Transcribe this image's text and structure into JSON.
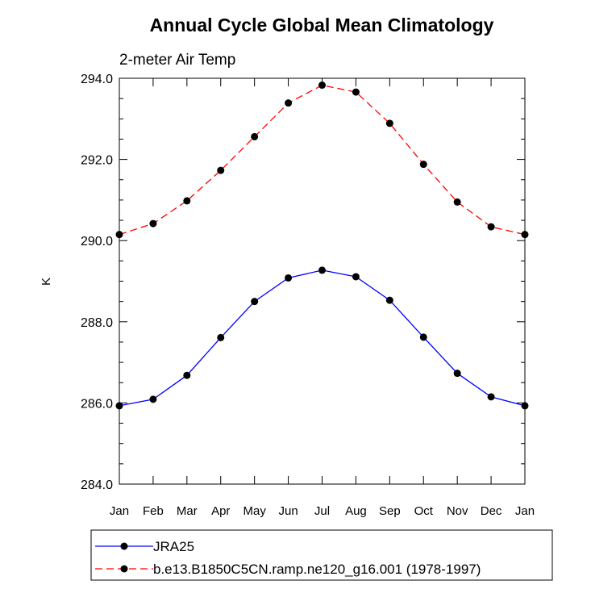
{
  "chart_data": {
    "type": "line",
    "title": "Annual Cycle Global Mean Climatology",
    "subtitle": "2-meter Air Temp",
    "xlabel": "",
    "ylabel": "K",
    "categories": [
      "Jan",
      "Feb",
      "Mar",
      "Apr",
      "May",
      "Jun",
      "Jul",
      "Aug",
      "Sep",
      "Oct",
      "Nov",
      "Dec",
      "Jan"
    ],
    "ylim": [
      284.0,
      294.0
    ],
    "yticks": [
      "284.0",
      "286.0",
      "288.0",
      "290.0",
      "292.0",
      "294.0"
    ],
    "grid": false,
    "legend_position": "bottom",
    "series": [
      {
        "name": "JRA25",
        "color": "#0000ff",
        "line_style": "solid",
        "marker": "filled-circle",
        "values": [
          285.93,
          286.09,
          286.68,
          287.61,
          288.5,
          289.08,
          289.27,
          289.11,
          288.53,
          287.62,
          286.73,
          286.15,
          285.93
        ]
      },
      {
        "name": "b.e13.B1850C5CN.ramp.ne120_g16.001 (1978-1997)",
        "color": "#ff0000",
        "line_style": "dashed",
        "marker": "filled-circle",
        "values": [
          290.15,
          290.42,
          290.98,
          291.73,
          292.56,
          293.39,
          293.83,
          293.66,
          292.89,
          291.88,
          290.95,
          290.34,
          290.15
        ]
      }
    ]
  }
}
